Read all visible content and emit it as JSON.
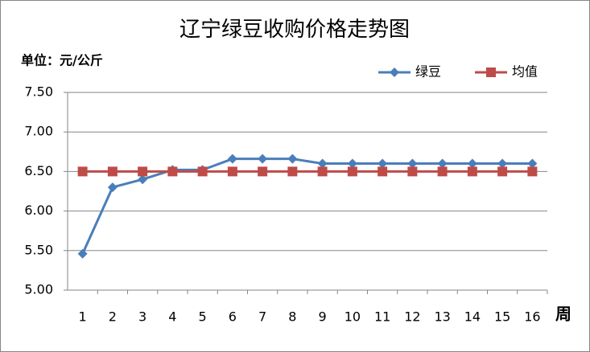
{
  "chart_data": {
    "type": "line",
    "title": "辽宁绿豆收购价格走势图",
    "y_unit_label": "单位：元/公斤",
    "x_axis_label": "周",
    "categories": [
      "1",
      "2",
      "3",
      "4",
      "5",
      "6",
      "7",
      "8",
      "9",
      "10",
      "11",
      "12",
      "13",
      "14",
      "15",
      "16"
    ],
    "series": [
      {
        "name": "绿豆",
        "color": "#4a7ebb",
        "marker": "diamond",
        "values": [
          5.46,
          6.3,
          6.4,
          6.52,
          6.52,
          6.66,
          6.66,
          6.66,
          6.6,
          6.6,
          6.6,
          6.6,
          6.6,
          6.6,
          6.6,
          6.6
        ]
      },
      {
        "name": "均值",
        "color": "#be4b48",
        "marker": "square",
        "values": [
          6.5,
          6.5,
          6.5,
          6.5,
          6.5,
          6.5,
          6.5,
          6.5,
          6.5,
          6.5,
          6.5,
          6.5,
          6.5,
          6.5,
          6.5,
          6.5
        ]
      }
    ],
    "ylim": [
      5,
      7.5
    ],
    "yticks": [
      {
        "value": 5,
        "label": "5.00"
      },
      {
        "value": 5.5,
        "label": "5.50"
      },
      {
        "value": 6,
        "label": "6.00"
      },
      {
        "value": 6.5,
        "label": "6.50"
      },
      {
        "value": 7,
        "label": "7.00"
      },
      {
        "value": 7.5,
        "label": "7.50"
      }
    ],
    "grid": true,
    "legend": "top-right"
  }
}
